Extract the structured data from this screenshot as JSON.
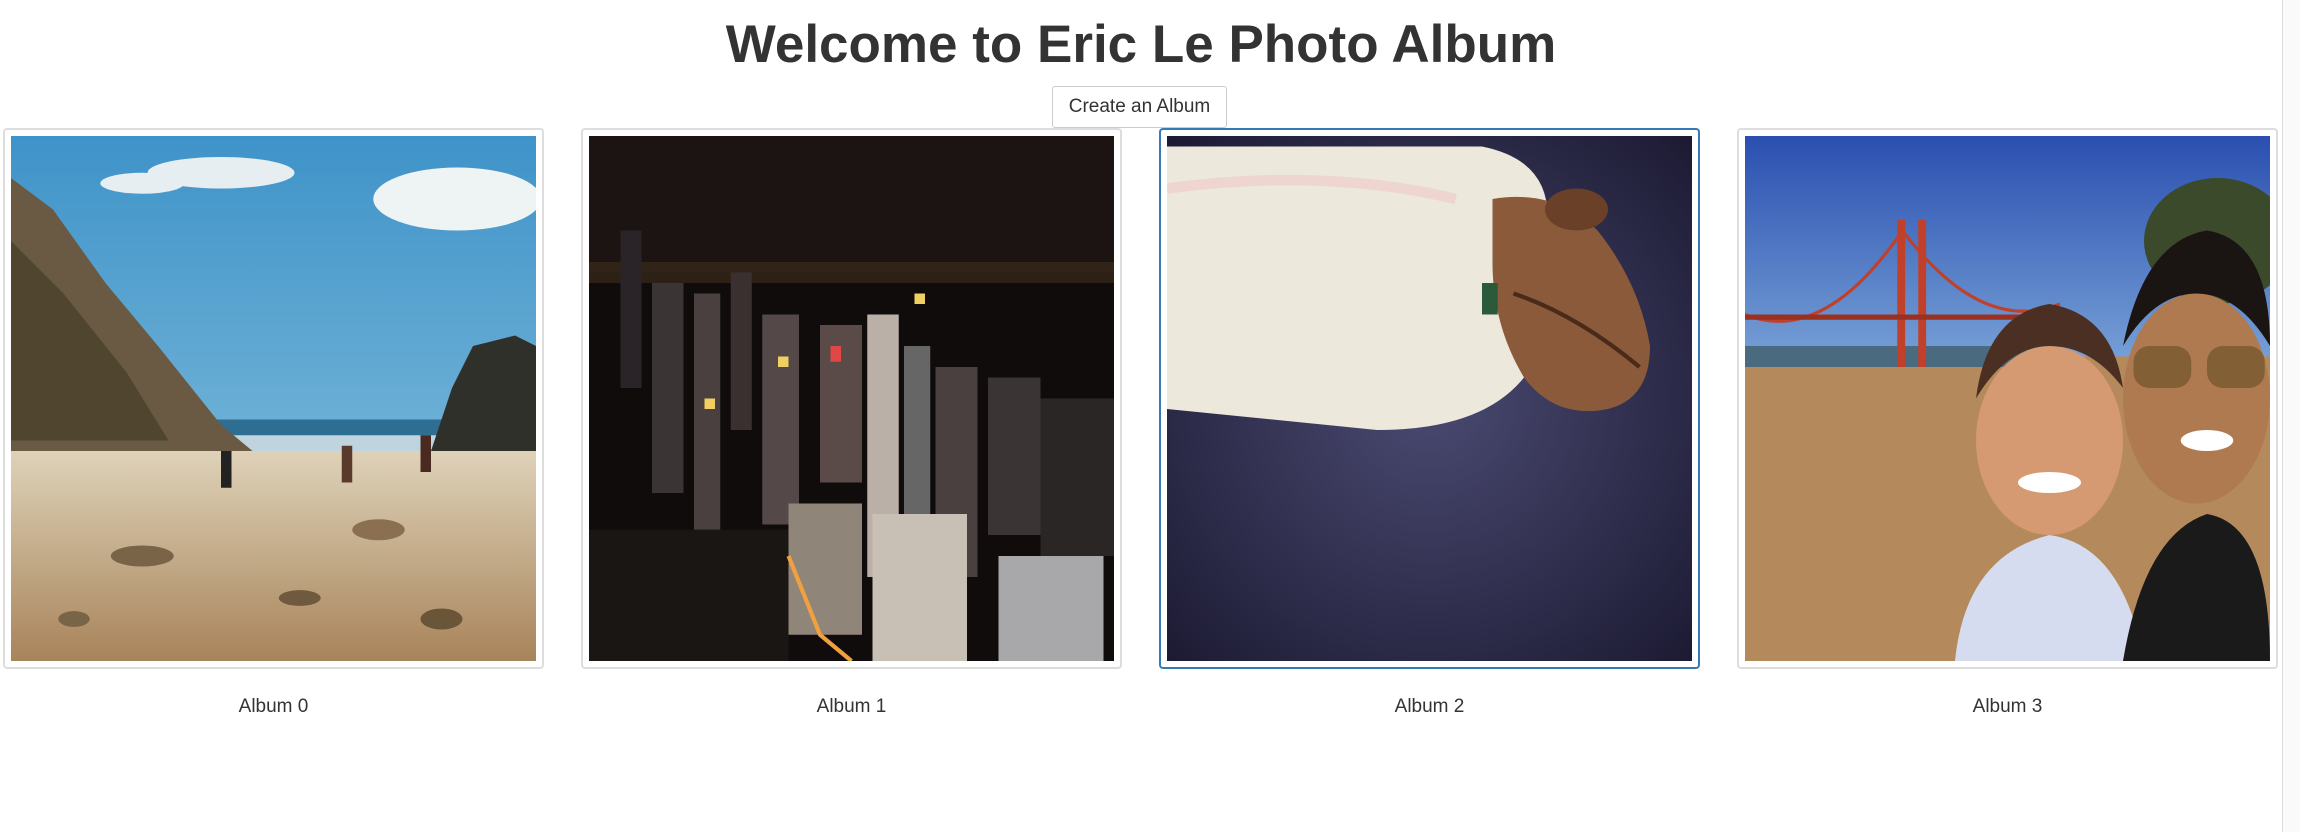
{
  "page": {
    "title": "Welcome to Eric Le Photo Album"
  },
  "toolbar": {
    "create_label": "Create an Album"
  },
  "albums": [
    {
      "label": "Album 0",
      "scene": "beach with rocks and people walking"
    },
    {
      "label": "Album 1",
      "scene": "city skyline at night"
    },
    {
      "label": "Album 2",
      "scene": "dog sleeping under a blanket",
      "selected": true
    },
    {
      "label": "Album 3",
      "scene": "two men smiling in front of Golden Gate Bridge"
    }
  ],
  "colors": {
    "title": "#333333",
    "thumb_border": "#dddddd",
    "selected_border": "#337ab7"
  }
}
